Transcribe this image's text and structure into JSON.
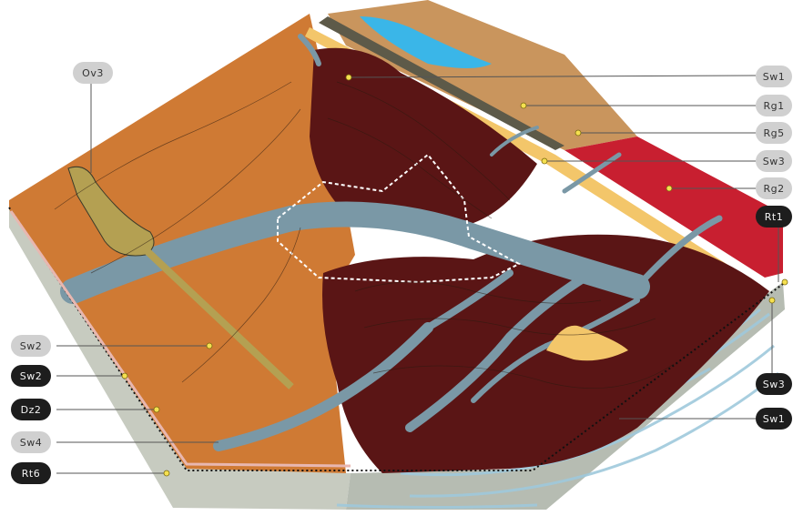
{
  "labels": {
    "left": [
      {
        "id": "ov3",
        "text": "Ov3",
        "style": "light"
      },
      {
        "id": "sw2a",
        "text": "Sw2",
        "style": "light"
      },
      {
        "id": "sw2b",
        "text": "Sw2",
        "style": "dark"
      },
      {
        "id": "dz2",
        "text": "Dz2",
        "style": "dark"
      },
      {
        "id": "sw4",
        "text": "Sw4",
        "style": "light"
      },
      {
        "id": "rt6",
        "text": "Rt6",
        "style": "dark"
      }
    ],
    "right": [
      {
        "id": "sw1a",
        "text": "Sw1",
        "style": "light"
      },
      {
        "id": "rg1",
        "text": "Rg1",
        "style": "light"
      },
      {
        "id": "rg5",
        "text": "Rg5",
        "style": "light"
      },
      {
        "id": "sw3a",
        "text": "Sw3",
        "style": "light"
      },
      {
        "id": "rg2",
        "text": "Rg2",
        "style": "light"
      },
      {
        "id": "rt1",
        "text": "Rt1",
        "style": "dark"
      },
      {
        "id": "sw3b",
        "text": "Sw3",
        "style": "dark"
      },
      {
        "id": "sw1b",
        "text": "Sw1",
        "style": "dark"
      }
    ]
  },
  "colors": {
    "orange": "#cf7a34",
    "maroon": "#5a1515",
    "river": "#7a98a6",
    "tan": "#c9955d",
    "red": "#c81f30",
    "sand": "#f3c66a",
    "lake": "#3ab6e8",
    "olive": "#b4a052",
    "base_light": "#c7cbc0",
    "base_dark": "#b6bcb2",
    "lines_light": "#9fc9dc"
  }
}
